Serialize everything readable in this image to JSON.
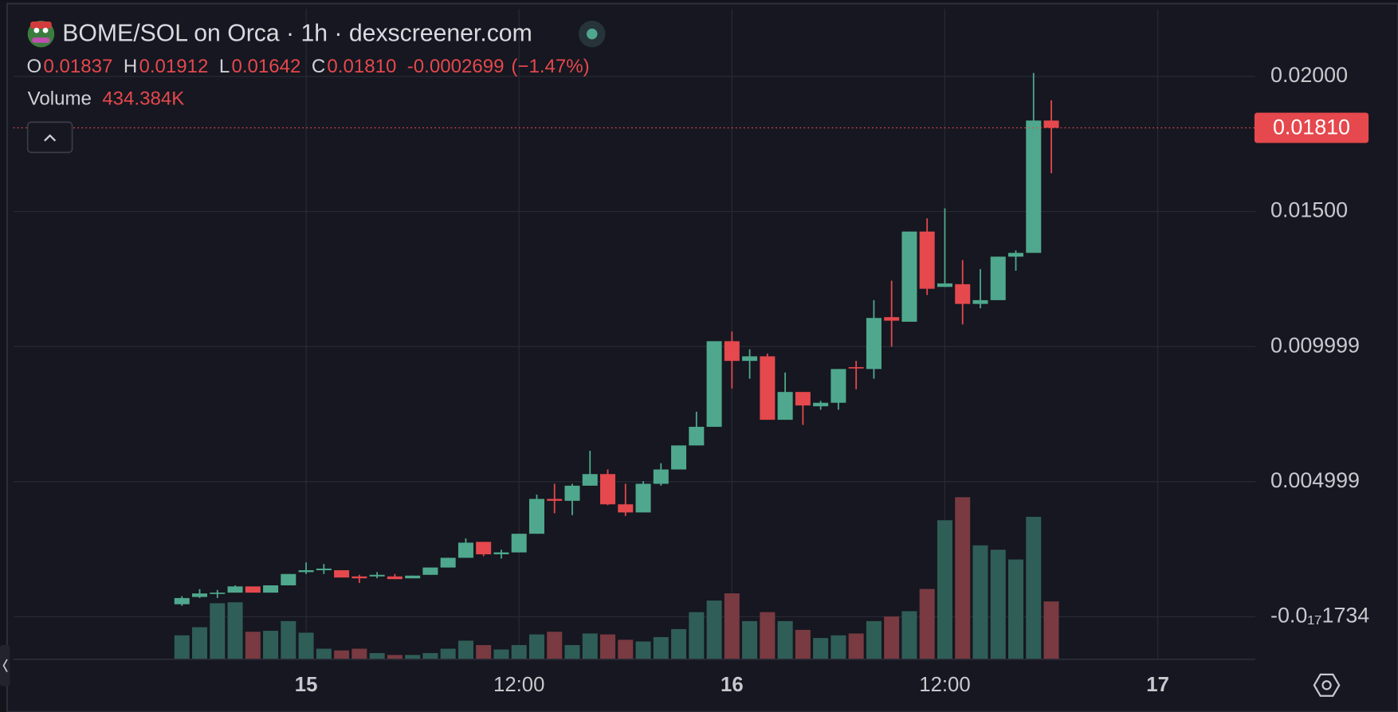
{
  "chart_data": {
    "type": "candlestick",
    "title": "BOME/SOL on Orca · 1h · dexscreener.com",
    "ohlc_readout": [
      {
        "key": "O",
        "value": 0.01837,
        "label": "0.01837"
      },
      {
        "key": "H",
        "value": 0.01912,
        "label": "0.01912"
      },
      {
        "key": "L",
        "value": 0.01642,
        "label": "0.01642"
      },
      {
        "key": "C",
        "value": 0.0181,
        "label": "0.01810"
      }
    ],
    "change": {
      "value": -0.0002699,
      "label": "-0.0002699"
    },
    "change_percent": {
      "value": -1.47,
      "label": "(−1.47%)"
    },
    "volume_readout": {
      "name": "Volume",
      "value": 434384,
      "label": "434.384K"
    },
    "last_price": {
      "value": 0.0181,
      "label": "0.01810"
    },
    "up_color": "#4fa88d",
    "down_color": "#e5484d",
    "volume_up_color": "#2f5e57",
    "volume_down_color": "#793a41",
    "grid": true,
    "xlim": [
      -16.5,
      53.5
    ],
    "xticks": [
      {
        "value": 0,
        "label": "15"
      },
      {
        "value": 12,
        "label": "12:00"
      },
      {
        "value": 24,
        "label": "16"
      },
      {
        "value": 36,
        "label": "12:00"
      },
      {
        "value": 48,
        "label": "17"
      }
    ],
    "ylim": [
      -0.00158,
      0.0225
    ],
    "yticks": [
      {
        "value": 0.02,
        "label": "0.02000"
      },
      {
        "value": 0.015,
        "label": "0.01500"
      },
      {
        "value": 0.009999,
        "label": "0.009999"
      },
      {
        "value": 0.004999,
        "label": "0.004999"
      },
      {
        "value": -1.734e-18,
        "label": "-0.0₁₇1734"
      }
    ],
    "x": [
      -7,
      -6,
      -5,
      -4,
      -3,
      -2,
      -1,
      0,
      1,
      2,
      3,
      4,
      5,
      6,
      7,
      8,
      9,
      10,
      11,
      12,
      13,
      14,
      15,
      16,
      17,
      18,
      19,
      20,
      21,
      22,
      23,
      24,
      25,
      26,
      27,
      28,
      29,
      30,
      31,
      32,
      33,
      34,
      35,
      36,
      37,
      38,
      39,
      40,
      41,
      42
    ],
    "open": [
      0.00046,
      0.00073,
      0.00086,
      0.00089,
      0.00112,
      0.00089,
      0.00116,
      0.00165,
      0.00172,
      0.00172,
      0.00149,
      0.00149,
      0.00149,
      0.00142,
      0.00155,
      0.00182,
      0.00218,
      0.00277,
      0.00231,
      0.00238,
      0.00307,
      0.00436,
      0.00429,
      0.00485,
      0.00528,
      0.00416,
      0.00386,
      0.00492,
      0.00545,
      0.00634,
      0.00703,
      0.0102,
      0.00947,
      0.00964,
      0.00729,
      0.00832,
      0.00779,
      0.00792,
      0.00924,
      0.00917,
      0.01109,
      0.01092,
      0.01426,
      0.01221,
      0.01231,
      0.01158,
      0.01172,
      0.01333,
      0.01347,
      0.01837
    ],
    "high": [
      0.00076,
      0.00102,
      0.00099,
      0.00116,
      0.00112,
      0.00116,
      0.00158,
      0.00201,
      0.00195,
      0.00172,
      0.00155,
      0.00165,
      0.00158,
      0.00152,
      0.00182,
      0.00218,
      0.0029,
      0.00277,
      0.00248,
      0.00307,
      0.00452,
      0.00492,
      0.00492,
      0.00614,
      0.00545,
      0.00492,
      0.00502,
      0.00568,
      0.00634,
      0.00759,
      0.0102,
      0.01056,
      0.0099,
      0.00974,
      0.00904,
      0.00832,
      0.00799,
      0.00917,
      0.00947,
      0.01172,
      0.01244,
      0.01426,
      0.01475,
      0.01512,
      0.0132,
      0.01287,
      0.01333,
      0.01356,
      0.02013,
      0.01912
    ],
    "low": [
      0.0004,
      0.00069,
      0.00069,
      0.00089,
      0.00089,
      0.00089,
      0.00116,
      0.00158,
      0.00158,
      0.00145,
      0.00125,
      0.00142,
      0.00139,
      0.00142,
      0.00155,
      0.00182,
      0.00218,
      0.00224,
      0.00215,
      0.00238,
      0.00307,
      0.00383,
      0.00376,
      0.00485,
      0.00413,
      0.00373,
      0.00386,
      0.00485,
      0.00545,
      0.00634,
      0.00703,
      0.00845,
      0.00881,
      0.00729,
      0.00729,
      0.0071,
      0.00766,
      0.00766,
      0.00842,
      0.00881,
      0.01,
      0.01092,
      0.01191,
      0.01221,
      0.01082,
      0.01142,
      0.01172,
      0.01281,
      0.01347,
      0.01642
    ],
    "close": [
      0.00069,
      0.00086,
      0.00089,
      0.00112,
      0.00089,
      0.00116,
      0.00158,
      0.00172,
      0.00178,
      0.00145,
      0.00142,
      0.00155,
      0.00139,
      0.00152,
      0.00182,
      0.00218,
      0.00274,
      0.00231,
      0.00238,
      0.00307,
      0.00436,
      0.00429,
      0.00485,
      0.00528,
      0.00416,
      0.00386,
      0.00492,
      0.00545,
      0.00634,
      0.00703,
      0.0102,
      0.00947,
      0.00964,
      0.00729,
      0.00832,
      0.00782,
      0.00792,
      0.00917,
      0.00921,
      0.01106,
      0.01096,
      0.01426,
      0.01214,
      0.01234,
      0.01158,
      0.01172,
      0.01333,
      0.01347,
      0.01837,
      0.0181
    ],
    "volume": [
      180000,
      241000,
      421000,
      428000,
      207000,
      214000,
      287000,
      200000,
      80000,
      67000,
      80000,
      47000,
      33000,
      33000,
      47000,
      80000,
      140000,
      107000,
      74000,
      107000,
      187000,
      207000,
      107000,
      194000,
      187000,
      147000,
      134000,
      167000,
      227000,
      354000,
      441000,
      495000,
      287000,
      354000,
      287000,
      221000,
      160000,
      180000,
      194000,
      287000,
      321000,
      361000,
      528000,
      1043000,
      1216000,
      855000,
      822000,
      749000,
      1069000,
      434384
    ]
  }
}
